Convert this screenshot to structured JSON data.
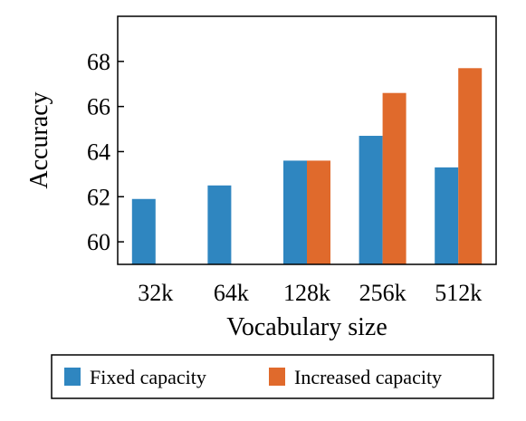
{
  "chart_data": {
    "type": "bar",
    "xlabel": "Vocabulary size",
    "ylabel": "Accuracy",
    "categories": [
      "32k",
      "64k",
      "128k",
      "256k",
      "512k"
    ],
    "ylim": [
      59,
      70
    ],
    "yticks": [
      60,
      62,
      64,
      66,
      68
    ],
    "grid": false,
    "legend_position": "bottom",
    "series": [
      {
        "name": "Fixed capacity",
        "color": "#2f86c0",
        "values": [
          61.9,
          62.5,
          63.6,
          64.7,
          63.3
        ]
      },
      {
        "name": "Increased capacity",
        "color": "#e06a2c",
        "values": [
          null,
          null,
          63.6,
          66.6,
          67.7
        ]
      }
    ]
  }
}
